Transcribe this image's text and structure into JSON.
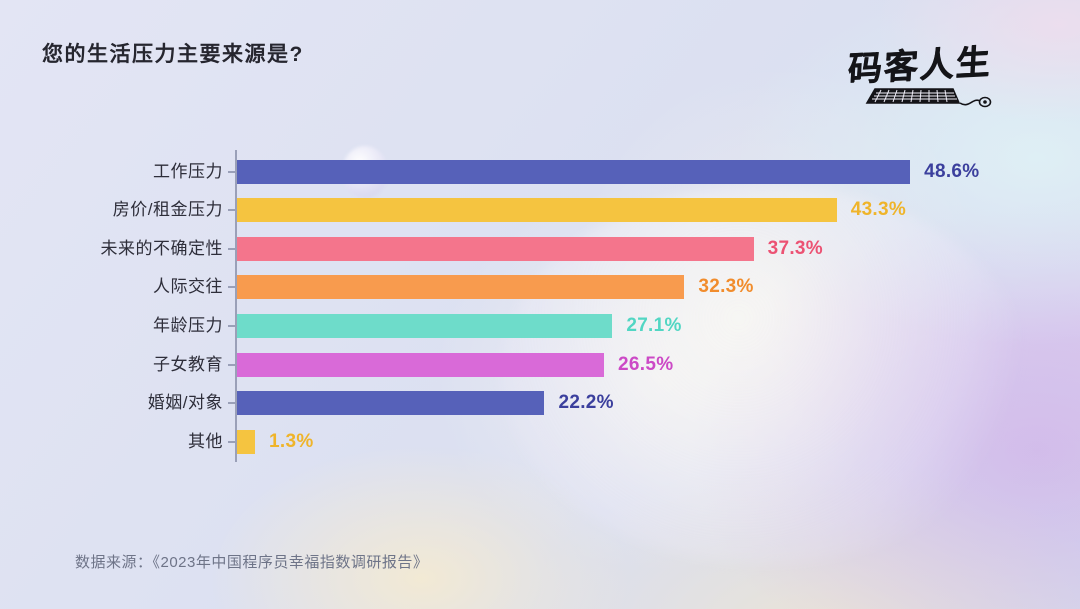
{
  "page": {
    "title": "您的生活压力主要来源是?",
    "source": "数据来源：《2023年中国程序员幸福指数调研报告》"
  },
  "logo": {
    "text": "码客人生"
  },
  "chart_data": {
    "type": "bar",
    "orientation": "horizontal",
    "title": "您的生活压力主要来源是?",
    "xlabel": "",
    "ylabel": "",
    "unit": "%",
    "xlim": [
      0,
      52
    ],
    "grid": false,
    "legend": false,
    "categories": [
      "工作压力",
      "房价/租金压力",
      "未来的不确定性",
      "人际交往",
      "年龄压力",
      "子女教育",
      "婚姻/对象",
      "其他"
    ],
    "values": [
      48.6,
      43.3,
      37.3,
      32.3,
      27.1,
      26.5,
      22.2,
      1.3
    ],
    "items": [
      {
        "label": "工作压力",
        "value": 48.6,
        "display": "48.6%",
        "bar_color": "#5661b9",
        "value_color": "#3b3f9d"
      },
      {
        "label": "房价/租金压力",
        "value": 43.3,
        "display": "43.3%",
        "bar_color": "#f5c440",
        "value_color": "#efb42a"
      },
      {
        "label": "未来的不确定性",
        "value": 37.3,
        "display": "37.3%",
        "bar_color": "#f4758c",
        "value_color": "#ec5273"
      },
      {
        "label": "人际交往",
        "value": 32.3,
        "display": "32.3%",
        "bar_color": "#f89b4e",
        "value_color": "#f18c2c"
      },
      {
        "label": "年龄压力",
        "value": 27.1,
        "display": "27.1%",
        "bar_color": "#6edcca",
        "value_color": "#52d6c3"
      },
      {
        "label": "子女教育",
        "value": 26.5,
        "display": "26.5%",
        "bar_color": "#d96ad8",
        "value_color": "#cc49c6"
      },
      {
        "label": "婚姻/对象",
        "value": 22.2,
        "display": "22.2%",
        "bar_color": "#5661b9",
        "value_color": "#3b3f9d"
      },
      {
        "label": "其他",
        "value": 1.3,
        "display": "1.3%",
        "bar_color": "#f5c440",
        "value_color": "#efb42a"
      }
    ]
  }
}
